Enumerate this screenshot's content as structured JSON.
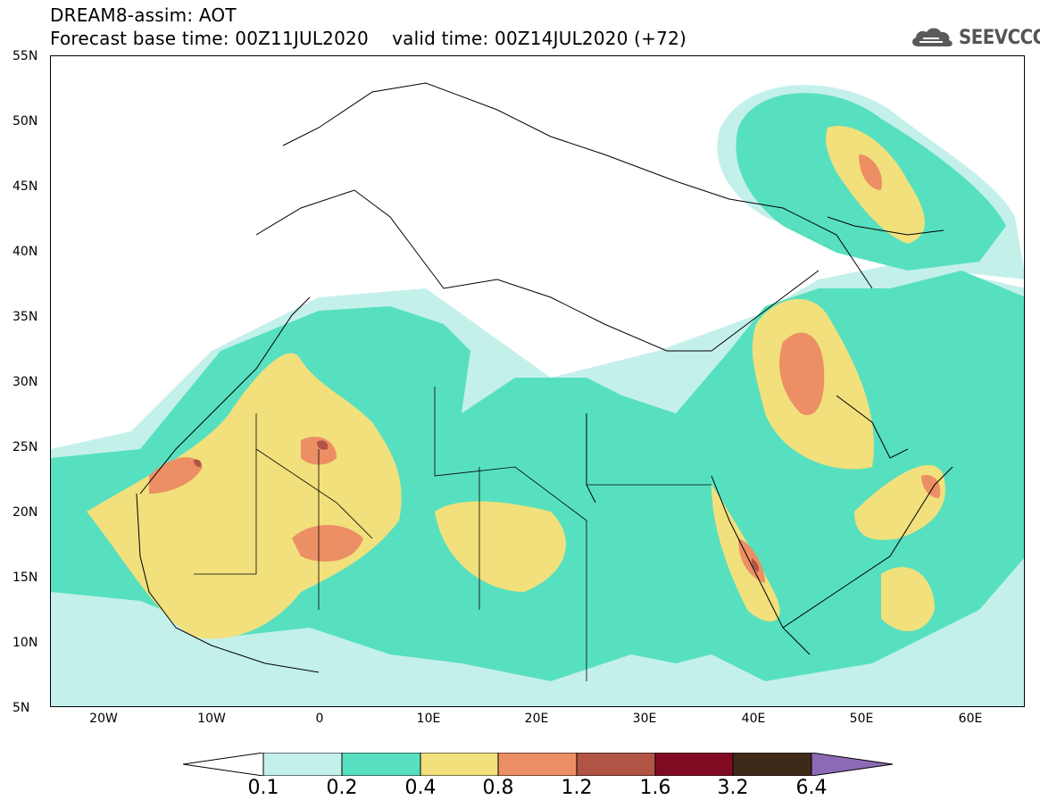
{
  "header": {
    "line1": "DREAM8-assim: AOT",
    "line2": "Forecast base time: 00Z11JUL2020    valid time: 00Z14JUL2020 (+72)"
  },
  "brand": {
    "name": "SEEVCCC",
    "icon": "cloud-logo-icon"
  },
  "axes": {
    "lat_labels": [
      "55N",
      "50N",
      "45N",
      "40N",
      "35N",
      "30N",
      "25N",
      "20N",
      "15N",
      "10N",
      "5N"
    ],
    "lon_labels": [
      "20W",
      "10W",
      "0",
      "10E",
      "20E",
      "30E",
      "40E",
      "50E",
      "60E"
    ],
    "lat_range": [
      5,
      55
    ],
    "lon_range": [
      -25,
      65
    ]
  },
  "colorbar": {
    "levels": [
      "0.1",
      "0.2",
      "0.4",
      "0.8",
      "1.2",
      "1.6",
      "3.2",
      "6.4"
    ],
    "colors": [
      "#c4f0ea",
      "#57e0bf",
      "#f1e07c",
      "#ec8f64",
      "#b15445",
      "#800b22",
      "#3f2a1a",
      "#8d6ab5"
    ]
  },
  "map": {
    "coastline_color": "#000000",
    "description_units": "AOT"
  }
}
